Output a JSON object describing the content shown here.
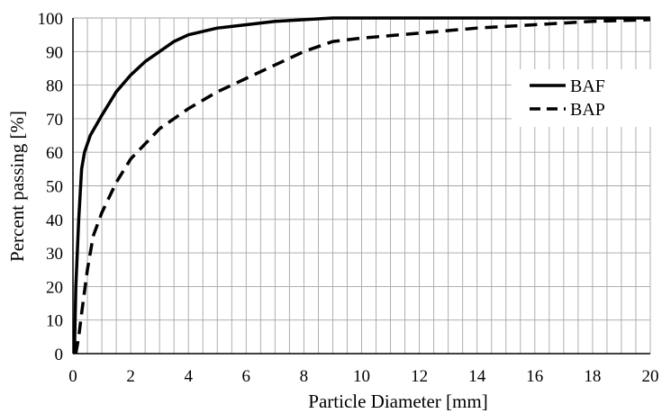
{
  "chart_data": {
    "type": "line",
    "title": "",
    "xlabel": "Particle Diameter [mm]",
    "ylabel": "Percent passing [%]",
    "xlim": [
      0,
      20
    ],
    "ylim": [
      0,
      100
    ],
    "x_ticks": [
      "0",
      "2",
      "4",
      "6",
      "8",
      "10",
      "12",
      "14",
      "16",
      "18",
      "20"
    ],
    "y_ticks": [
      "0",
      "10",
      "20",
      "30",
      "40",
      "50",
      "60",
      "70",
      "80",
      "90",
      "100"
    ],
    "grid": true,
    "legend_position": "right",
    "series": [
      {
        "name": "BAF",
        "style": "solid",
        "color": "#000000",
        "x": [
          0.05,
          0.1,
          0.2,
          0.3,
          0.4,
          0.6,
          0.8,
          1.0,
          1.5,
          2.0,
          2.5,
          3.0,
          3.5,
          4.0,
          5.0,
          6.0,
          7.0,
          8.0,
          9.0,
          10.0,
          12.0,
          14.0,
          16.0,
          18.0,
          20.0
        ],
        "y": [
          0,
          20,
          40,
          55,
          60,
          65,
          68,
          71,
          78,
          83,
          87,
          90,
          93,
          95,
          97,
          98,
          99,
          99.5,
          100,
          100,
          100,
          100,
          100,
          100,
          100
        ]
      },
      {
        "name": "BAP",
        "style": "dashed",
        "color": "#000000",
        "x": [
          0.1,
          0.2,
          0.3,
          0.5,
          0.7,
          1.0,
          1.5,
          2.0,
          3.0,
          4.0,
          5.0,
          6.0,
          7.0,
          8.0,
          9.0,
          10.0,
          12.0,
          14.0,
          16.0,
          18.0,
          20.0
        ],
        "y": [
          0,
          5,
          12,
          25,
          35,
          42,
          51,
          58,
          67,
          73,
          78,
          82,
          86,
          90,
          93,
          94,
          95.5,
          97,
          98,
          99,
          99.5
        ]
      }
    ]
  }
}
